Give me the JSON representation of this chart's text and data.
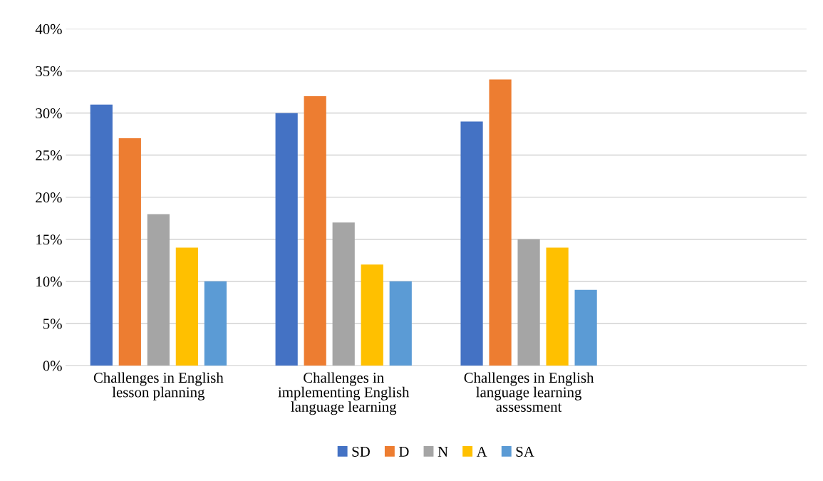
{
  "chart_data": {
    "type": "bar",
    "categories": [
      "Challenges in English lesson planning",
      "Challenges in implementing English language learning",
      "Challenges in English language learning assessment",
      null
    ],
    "series": [
      {
        "name": "SD",
        "color": "#4472c4",
        "values": [
          31,
          30,
          29,
          null
        ]
      },
      {
        "name": "D",
        "color": "#ed7d31",
        "values": [
          27,
          32,
          34,
          null
        ]
      },
      {
        "name": "N",
        "color": "#a5a5a5",
        "values": [
          18,
          17,
          15,
          null
        ]
      },
      {
        "name": "A",
        "color": "#ffc000",
        "values": [
          14,
          12,
          14,
          null
        ]
      },
      {
        "name": "SA",
        "color": "#5b9bd5",
        "values": [
          10,
          10,
          9,
          null
        ]
      }
    ],
    "ylim": [
      0,
      40
    ],
    "yticks": [
      {
        "value": 0,
        "label": "0%"
      },
      {
        "value": 5,
        "label": "5%"
      },
      {
        "value": 10,
        "label": "10%"
      },
      {
        "value": 15,
        "label": "15%"
      },
      {
        "value": 20,
        "label": "20%"
      },
      {
        "value": 25,
        "label": "25%"
      },
      {
        "value": 30,
        "label": "30%"
      },
      {
        "value": 35,
        "label": "35%"
      },
      {
        "value": 40,
        "label": "40%"
      }
    ],
    "grid": "y",
    "legend": "bottom"
  }
}
